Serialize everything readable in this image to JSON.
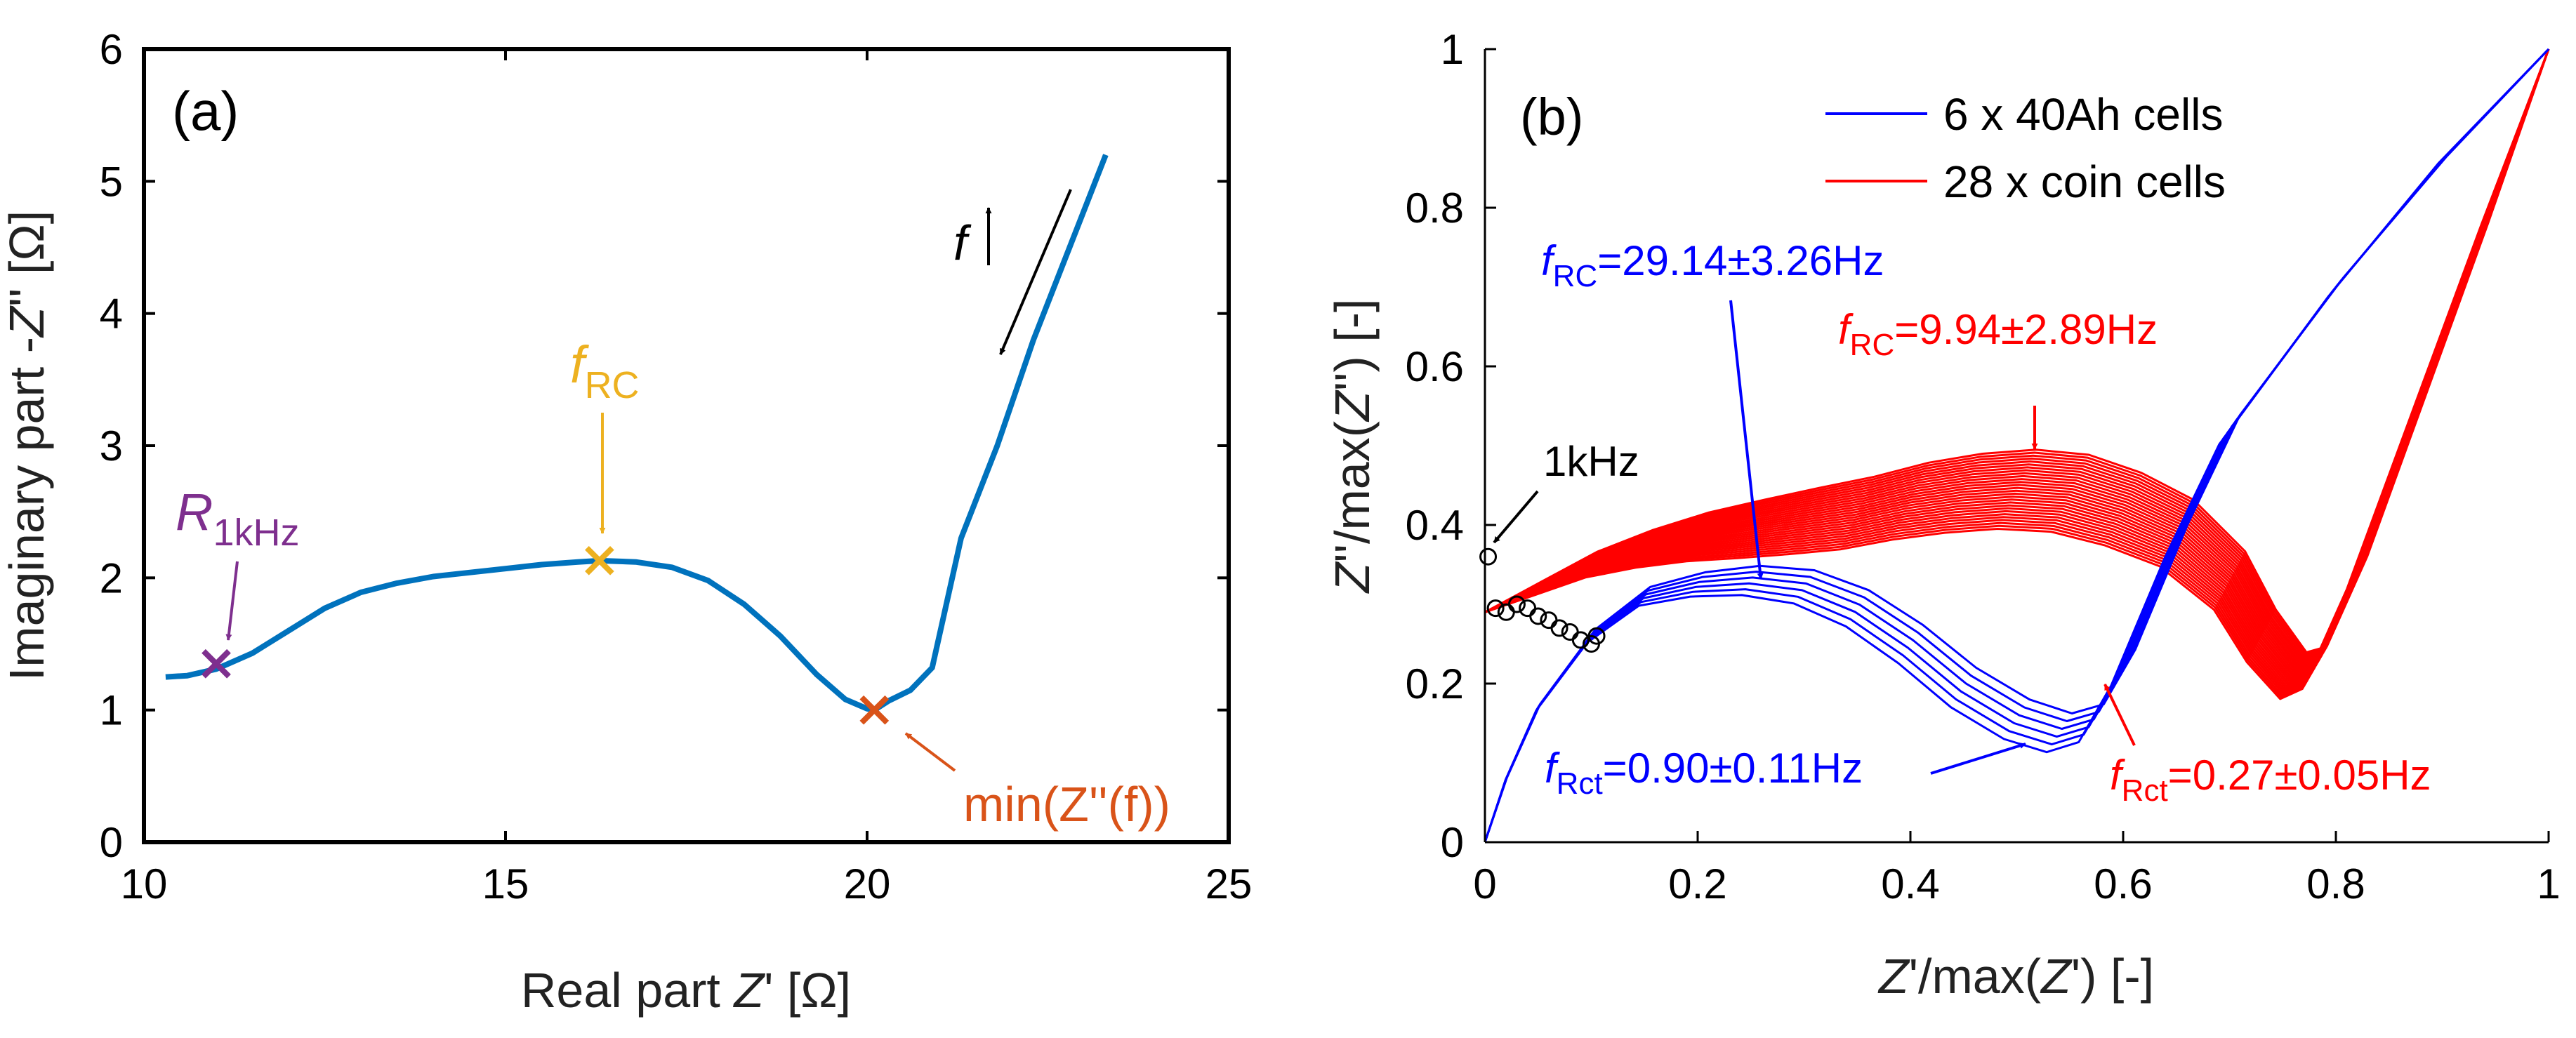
{
  "chart_data": [
    {
      "type": "line",
      "panel_label": "(a)",
      "xlabel": {
        "pre": "Real part ",
        "var": "Z",
        "post": "' [Ω]"
      },
      "ylabel": {
        "pre": "Imaginary part -",
        "var": "Z",
        "post": "'' [Ω]"
      },
      "xlim": [
        10,
        25
      ],
      "ylim": [
        0,
        6
      ],
      "xticks": [
        "10",
        "15",
        "20",
        "25"
      ],
      "yticks": [
        "0",
        "1",
        "2",
        "3",
        "4",
        "5",
        "6"
      ],
      "grid": false,
      "series": [
        {
          "color": "#0072BD",
          "x": [
            10.3,
            10.6,
            11.0,
            11.5,
            12.0,
            12.5,
            13.0,
            13.5,
            14.0,
            14.5,
            15.0,
            15.5,
            16.0,
            16.3,
            16.8,
            17.3,
            17.8,
            18.3,
            18.8,
            19.3,
            19.7,
            20.0,
            20.1,
            20.3,
            20.6,
            20.9,
            21.3,
            21.8,
            22.3,
            22.8,
            23.3
          ],
          "y": [
            1.25,
            1.26,
            1.31,
            1.43,
            1.6,
            1.77,
            1.89,
            1.96,
            2.01,
            2.04,
            2.07,
            2.1,
            2.12,
            2.13,
            2.12,
            2.08,
            1.98,
            1.8,
            1.56,
            1.27,
            1.08,
            1.01,
            1.0,
            1.07,
            1.15,
            1.32,
            2.3,
            3.0,
            3.8,
            4.5,
            5.2
          ]
        }
      ],
      "markers": [
        {
          "x": 11.0,
          "y": 1.35,
          "color": "#7E2F8E"
        },
        {
          "x": 16.3,
          "y": 2.13,
          "color": "#EDB120"
        },
        {
          "x": 20.1,
          "y": 1.0,
          "color": "#D95319"
        }
      ],
      "annotations": [
        {
          "name": "r1khz",
          "main": "R",
          "sub": "1kHz",
          "color": "#7E2F8E"
        },
        {
          "name": "frc",
          "main": "f",
          "sub": "RC",
          "color": "#EDB120"
        },
        {
          "name": "minz",
          "text": "min(Z''(f))",
          "color": "#D95319"
        },
        {
          "name": "f-arrow",
          "text": "f",
          "color": "#000000"
        }
      ]
    },
    {
      "type": "line",
      "panel_label": "(b)",
      "xlabel": {
        "var1": "Z",
        "mid": "'/max(",
        "var2": "Z",
        "post": "') [-]"
      },
      "ylabel": {
        "var1": "Z",
        "mid": "''/max(",
        "var2": "Z",
        "post": "'') [-]"
      },
      "xlim": [
        0,
        1
      ],
      "ylim": [
        0,
        1
      ],
      "xticks": [
        "0",
        "0.2",
        "0.4",
        "0.6",
        "0.8",
        "1"
      ],
      "yticks": [
        "0",
        "0.2",
        "0.4",
        "0.6",
        "0.8",
        "1"
      ],
      "grid": false,
      "legend_position": "top-right",
      "legend": [
        {
          "label": "6 x 40Ah cells",
          "color": "#0000FF"
        },
        {
          "label": "28 x coin cells",
          "color": "#FF0000"
        }
      ],
      "series": [
        {
          "name": "6 x 40Ah cells",
          "color": "#0000FF",
          "count": 6,
          "x": [
            0.0,
            0.02,
            0.05,
            0.1,
            0.15,
            0.2,
            0.25,
            0.3,
            0.35,
            0.4,
            0.45,
            0.5,
            0.54,
            0.57,
            0.6,
            0.65,
            0.7,
            0.8,
            0.9,
            1.0
          ],
          "y": [
            0.0,
            0.08,
            0.17,
            0.26,
            0.31,
            0.325,
            0.33,
            0.322,
            0.295,
            0.25,
            0.195,
            0.155,
            0.138,
            0.15,
            0.22,
            0.38,
            0.52,
            0.7,
            0.86,
            1.0
          ]
        },
        {
          "name": "28 x coin cells",
          "color": "#FF0000",
          "count": 28,
          "x": [
            0.0,
            0.05,
            0.1,
            0.15,
            0.2,
            0.25,
            0.3,
            0.35,
            0.4,
            0.45,
            0.5,
            0.55,
            0.6,
            0.65,
            0.7,
            0.73,
            0.76,
            0.78,
            0.82,
            0.88,
            0.94,
            1.0
          ],
          "y": [
            0.29,
            0.32,
            0.35,
            0.37,
            0.385,
            0.395,
            0.405,
            0.415,
            0.43,
            0.44,
            0.445,
            0.44,
            0.42,
            0.39,
            0.33,
            0.26,
            0.21,
            0.22,
            0.34,
            0.56,
            0.78,
            1.0
          ]
        }
      ],
      "markers_1khz": {
        "color": "#000000",
        "x": [
          0.003,
          0.01,
          0.02,
          0.03,
          0.04,
          0.05,
          0.06,
          0.07,
          0.08,
          0.09,
          0.1,
          0.105
        ],
        "y": [
          0.36,
          0.295,
          0.29,
          0.3,
          0.295,
          0.285,
          0.28,
          0.27,
          0.265,
          0.255,
          0.25,
          0.26
        ]
      },
      "annotations": [
        {
          "name": "label-1khz",
          "text": "1kHz",
          "color": "#000000"
        },
        {
          "name": "frc-blue",
          "main": "f",
          "sub": "RC",
          "rest": "=29.14±3.26Hz",
          "color": "#0000FF"
        },
        {
          "name": "frc-red",
          "main": "f",
          "sub": "RC",
          "rest": "=9.94±2.89Hz",
          "color": "#FF0000"
        },
        {
          "name": "frct-blue",
          "main": "f",
          "sub": "Rct",
          "rest": "=0.90±0.11Hz",
          "color": "#0000FF"
        },
        {
          "name": "frct-red",
          "main": "f",
          "sub": "Rct",
          "rest": "=0.27±0.05Hz",
          "color": "#FF0000"
        }
      ]
    }
  ]
}
